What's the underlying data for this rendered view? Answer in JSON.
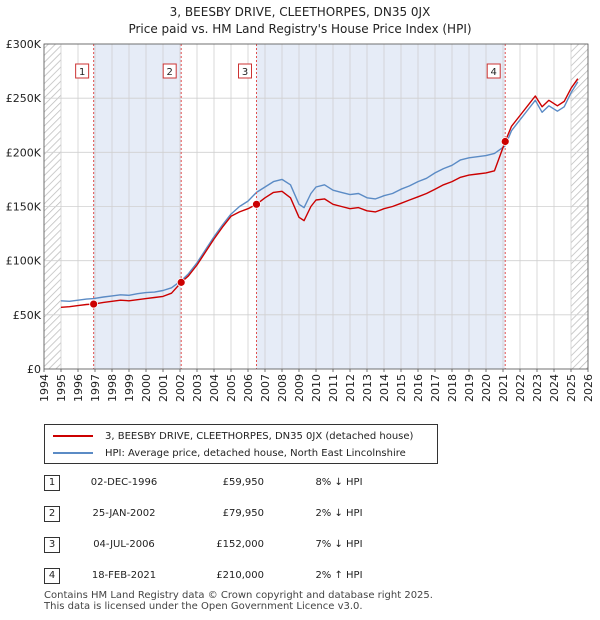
{
  "title": "3, BEESBY DRIVE, CLEETHORPES, DN35 0JX",
  "subtitle": "Price paid vs. HM Land Registry's House Price Index (HPI)",
  "legend": {
    "property_label": "3, BEESBY DRIVE, CLEETHORPES, DN35 0JX (detached house)",
    "hpi_label": "HPI: Average price, detached house, North East Lincolnshire"
  },
  "colors": {
    "property": "#cc0000",
    "hpi": "#5b8bc5",
    "shade": "#e6ecf7",
    "grid": "#d0d0d0"
  },
  "sales": [
    {
      "num": "1",
      "date": "02-DEC-1996",
      "price": "£59,950",
      "hpi": "8% ↓ HPI"
    },
    {
      "num": "2",
      "date": "25-JAN-2002",
      "price": "£79,950",
      "hpi": "2% ↓ HPI"
    },
    {
      "num": "3",
      "date": "04-JUL-2006",
      "price": "£152,000",
      "hpi": "7% ↓ HPI"
    },
    {
      "num": "4",
      "date": "18-FEB-2021",
      "price": "£210,000",
      "hpi": "2% ↑ HPI"
    }
  ],
  "footer": {
    "line1": "Contains HM Land Registry data © Crown copyright and database right 2025.",
    "line2": "This data is licensed under the Open Government Licence v3.0."
  },
  "chart_data": {
    "type": "line",
    "title": "3, BEESBY DRIVE, CLEETHORPES, DN35 0JX",
    "subtitle": "Price paid vs. HM Land Registry's House Price Index (HPI)",
    "xlim": [
      1994,
      2026
    ],
    "ylim": [
      0,
      300000
    ],
    "x_ticks": [
      1994,
      1995,
      1996,
      1997,
      1998,
      1999,
      2000,
      2001,
      2002,
      2003,
      2004,
      2005,
      2006,
      2007,
      2008,
      2009,
      2010,
      2011,
      2012,
      2013,
      2014,
      2015,
      2016,
      2017,
      2018,
      2019,
      2020,
      2021,
      2022,
      2023,
      2024,
      2025,
      2026
    ],
    "y_ticks": [
      {
        "value": 0,
        "label": "£0"
      },
      {
        "value": 50000,
        "label": "£50K"
      },
      {
        "value": 100000,
        "label": "£100K"
      },
      {
        "value": 150000,
        "label": "£150K"
      },
      {
        "value": 200000,
        "label": "£200K"
      },
      {
        "value": 250000,
        "label": "£250K"
      },
      {
        "value": 300000,
        "label": "£300K"
      }
    ],
    "shaded_periods": [
      [
        1996.92,
        2002.07
      ],
      [
        2006.5,
        2021.13
      ]
    ],
    "data_start": 1995.0,
    "hatched_after": 2025.0,
    "series": [
      {
        "name": "HPI: Average price, detached house, North East Lincolnshire",
        "color": "#5b8bc5",
        "points": [
          [
            1995.0,
            63000
          ],
          [
            1995.5,
            62500
          ],
          [
            1996.0,
            63500
          ],
          [
            1996.5,
            64500
          ],
          [
            1996.92,
            65000
          ],
          [
            1997.5,
            66500
          ],
          [
            1998.0,
            67500
          ],
          [
            1998.5,
            68500
          ],
          [
            1999.0,
            68000
          ],
          [
            1999.5,
            69500
          ],
          [
            2000.0,
            70500
          ],
          [
            2000.5,
            71000
          ],
          [
            2001.0,
            72500
          ],
          [
            2001.5,
            75000
          ],
          [
            2002.07,
            81500
          ],
          [
            2002.5,
            88000
          ],
          [
            2003.0,
            98000
          ],
          [
            2003.5,
            110000
          ],
          [
            2004.0,
            122000
          ],
          [
            2004.5,
            133000
          ],
          [
            2005.0,
            143000
          ],
          [
            2005.5,
            150000
          ],
          [
            2006.0,
            155000
          ],
          [
            2006.5,
            163000
          ],
          [
            2007.0,
            168000
          ],
          [
            2007.5,
            173000
          ],
          [
            2008.0,
            175000
          ],
          [
            2008.5,
            170000
          ],
          [
            2009.0,
            152000
          ],
          [
            2009.3,
            149000
          ],
          [
            2009.7,
            162000
          ],
          [
            2010.0,
            168000
          ],
          [
            2010.5,
            170000
          ],
          [
            2011.0,
            165000
          ],
          [
            2011.5,
            163000
          ],
          [
            2012.0,
            161000
          ],
          [
            2012.5,
            162000
          ],
          [
            2013.0,
            158000
          ],
          [
            2013.5,
            157000
          ],
          [
            2014.0,
            160000
          ],
          [
            2014.5,
            162000
          ],
          [
            2015.0,
            166000
          ],
          [
            2015.5,
            169000
          ],
          [
            2016.0,
            173000
          ],
          [
            2016.5,
            176000
          ],
          [
            2017.0,
            181000
          ],
          [
            2017.5,
            185000
          ],
          [
            2018.0,
            188000
          ],
          [
            2018.5,
            193000
          ],
          [
            2019.0,
            195000
          ],
          [
            2019.5,
            196000
          ],
          [
            2020.0,
            197000
          ],
          [
            2020.5,
            199000
          ],
          [
            2021.13,
            206000
          ],
          [
            2021.5,
            220000
          ],
          [
            2022.0,
            230000
          ],
          [
            2022.5,
            240000
          ],
          [
            2022.9,
            248000
          ],
          [
            2023.3,
            237000
          ],
          [
            2023.7,
            243000
          ],
          [
            2024.2,
            238000
          ],
          [
            2024.6,
            242000
          ],
          [
            2025.0,
            255000
          ],
          [
            2025.4,
            265000
          ]
        ]
      },
      {
        "name": "3, BEESBY DRIVE, CLEETHORPES, DN35 0JX (detached house)",
        "color": "#cc0000",
        "points": [
          [
            1995.0,
            57000
          ],
          [
            1995.5,
            57500
          ],
          [
            1996.0,
            58500
          ],
          [
            1996.5,
            59500
          ],
          [
            1996.92,
            59950
          ],
          [
            1997.5,
            61500
          ],
          [
            1998.0,
            62500
          ],
          [
            1998.5,
            63500
          ],
          [
            1999.0,
            63000
          ],
          [
            1999.5,
            64000
          ],
          [
            2000.0,
            65000
          ],
          [
            2000.5,
            66000
          ],
          [
            2001.0,
            67000
          ],
          [
            2001.5,
            70000
          ],
          [
            2002.07,
            79950
          ],
          [
            2002.5,
            86000
          ],
          [
            2003.0,
            96000
          ],
          [
            2003.5,
            108000
          ],
          [
            2004.0,
            120000
          ],
          [
            2004.5,
            131000
          ],
          [
            2005.0,
            141000
          ],
          [
            2005.5,
            145000
          ],
          [
            2006.0,
            148000
          ],
          [
            2006.5,
            152000
          ],
          [
            2007.0,
            158000
          ],
          [
            2007.5,
            163000
          ],
          [
            2008.0,
            164000
          ],
          [
            2008.5,
            158000
          ],
          [
            2009.0,
            140000
          ],
          [
            2009.3,
            137000
          ],
          [
            2009.7,
            150000
          ],
          [
            2010.0,
            156000
          ],
          [
            2010.5,
            157000
          ],
          [
            2011.0,
            152000
          ],
          [
            2011.5,
            150000
          ],
          [
            2012.0,
            148000
          ],
          [
            2012.5,
            149000
          ],
          [
            2013.0,
            146000
          ],
          [
            2013.5,
            145000
          ],
          [
            2014.0,
            148000
          ],
          [
            2014.5,
            150000
          ],
          [
            2015.0,
            153000
          ],
          [
            2015.5,
            156000
          ],
          [
            2016.0,
            159000
          ],
          [
            2016.5,
            162000
          ],
          [
            2017.0,
            166000
          ],
          [
            2017.5,
            170000
          ],
          [
            2018.0,
            173000
          ],
          [
            2018.5,
            177000
          ],
          [
            2019.0,
            179000
          ],
          [
            2019.5,
            180000
          ],
          [
            2020.0,
            181000
          ],
          [
            2020.5,
            183000
          ],
          [
            2021.13,
            210000
          ],
          [
            2021.5,
            224000
          ],
          [
            2022.0,
            234000
          ],
          [
            2022.5,
            244000
          ],
          [
            2022.9,
            252000
          ],
          [
            2023.3,
            242000
          ],
          [
            2023.7,
            248000
          ],
          [
            2024.2,
            243000
          ],
          [
            2024.6,
            247000
          ],
          [
            2025.0,
            259000
          ],
          [
            2025.4,
            268000
          ]
        ]
      }
    ],
    "sale_markers": [
      {
        "label": "1",
        "x": 1996.92,
        "y": 59950
      },
      {
        "label": "2",
        "x": 2002.07,
        "y": 79950
      },
      {
        "label": "3",
        "x": 2006.5,
        "y": 152000
      },
      {
        "label": "4",
        "x": 2021.13,
        "y": 210000
      }
    ]
  }
}
